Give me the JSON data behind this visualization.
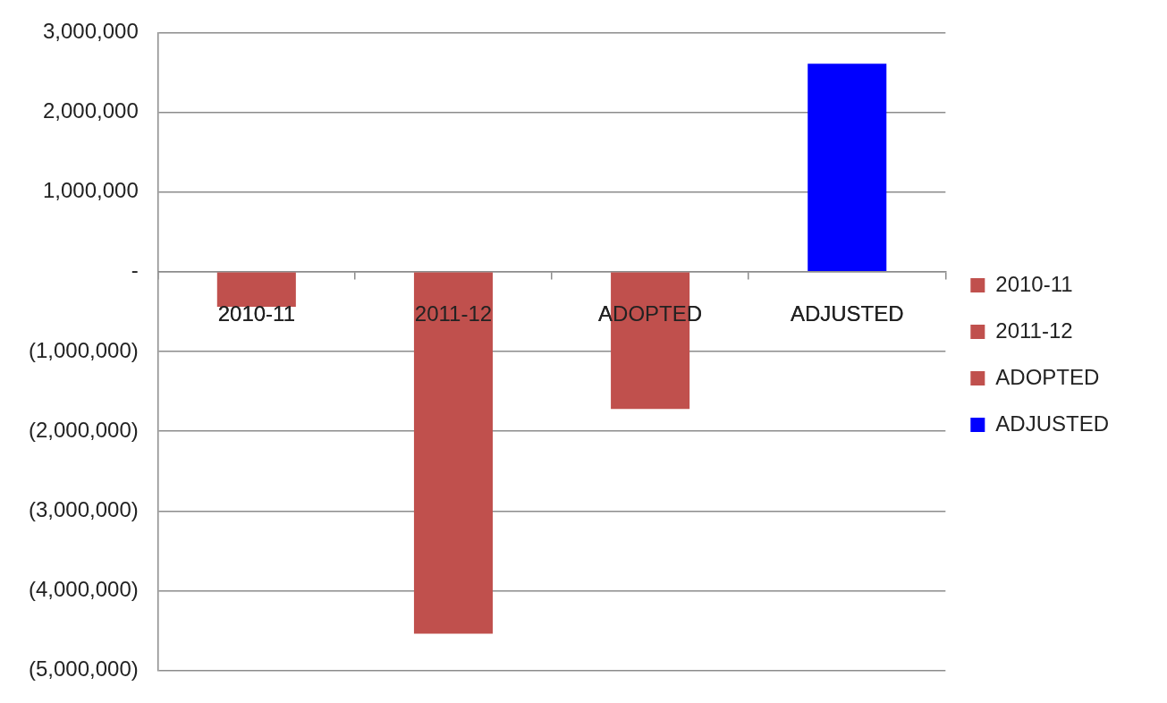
{
  "chart_data": {
    "type": "bar",
    "categories": [
      "2010-11",
      "2011-12",
      "ADOPTED",
      "ADJUSTED"
    ],
    "series": [
      {
        "name": "2010-11",
        "color": "#c0504d",
        "values": [
          -440000,
          null,
          null,
          null
        ]
      },
      {
        "name": "2011-12",
        "color": "#c0504d",
        "values": [
          null,
          -4540000,
          null,
          null
        ]
      },
      {
        "name": "ADOPTED",
        "color": "#c0504d",
        "values": [
          null,
          null,
          -1720000,
          null
        ]
      },
      {
        "name": "ADJUSTED",
        "color": "#0000ff",
        "values": [
          null,
          null,
          null,
          2610000
        ]
      }
    ],
    "ylim": [
      -5000000,
      3000000
    ],
    "yticks": [
      {
        "value": 3000000,
        "label": "3,000,000"
      },
      {
        "value": 2000000,
        "label": "2,000,000"
      },
      {
        "value": 1000000,
        "label": "1,000,000"
      },
      {
        "value": 0,
        "label": "-"
      },
      {
        "value": -1000000,
        "label": "(1,000,000)"
      },
      {
        "value": -2000000,
        "label": "(2,000,000)"
      },
      {
        "value": -3000000,
        "label": "(3,000,000)"
      },
      {
        "value": -4000000,
        "label": "(4,000,000)"
      },
      {
        "value": -5000000,
        "label": "(5,000,000)"
      }
    ],
    "grid": "y",
    "legend": "right"
  }
}
